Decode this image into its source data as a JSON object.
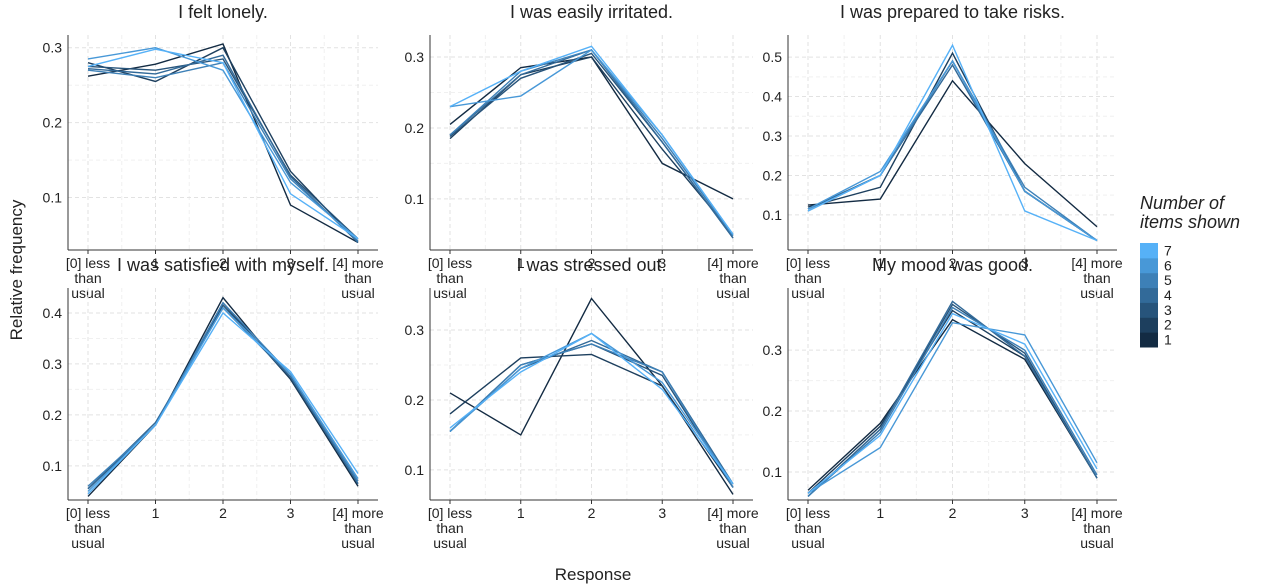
{
  "y_label": "Relative frequency",
  "x_label": "Response",
  "legend_title": "Number of items shown",
  "chart_data": [
    {
      "type": "line",
      "title": "I felt lonely.",
      "categories": [
        "[0] less than usual",
        "1",
        "2",
        "3",
        "[4] more than usual"
      ],
      "ylim": [
        0.03,
        0.317
      ],
      "yticks": [
        0.1,
        0.2,
        0.3
      ],
      "grid": true,
      "series": [
        {
          "name": "1",
          "color": "#132B43",
          "values": [
            0.262,
            0.278,
            0.305,
            0.09,
            0.04
          ]
        },
        {
          "name": "2",
          "color": "#1D3F5E",
          "values": [
            0.28,
            0.255,
            0.3,
            0.135,
            0.04
          ]
        },
        {
          "name": "3",
          "color": "#27547B",
          "values": [
            0.275,
            0.27,
            0.285,
            0.13,
            0.045
          ]
        },
        {
          "name": "4",
          "color": "#326A99",
          "values": [
            0.272,
            0.265,
            0.29,
            0.128,
            0.04
          ]
        },
        {
          "name": "5",
          "color": "#3D80B7",
          "values": [
            0.27,
            0.26,
            0.28,
            0.125,
            0.042
          ]
        },
        {
          "name": "6",
          "color": "#4898D7",
          "values": [
            0.285,
            0.3,
            0.27,
            0.12,
            0.045
          ]
        },
        {
          "name": "7",
          "color": "#56B1F7",
          "values": [
            0.275,
            0.298,
            0.28,
            0.105,
            0.045
          ]
        }
      ]
    },
    {
      "type": "line",
      "title": "I was easily irritated.",
      "categories": [
        "[0] less than usual",
        "1",
        "2",
        "3",
        "[4] more than usual"
      ],
      "ylim": [
        0.028,
        0.331
      ],
      "yticks": [
        0.1,
        0.2,
        0.3
      ],
      "grid": true,
      "series": [
        {
          "name": "1",
          "color": "#132B43",
          "values": [
            0.205,
            0.285,
            0.3,
            0.15,
            0.1
          ]
        },
        {
          "name": "2",
          "color": "#1D3F5E",
          "values": [
            0.185,
            0.275,
            0.3,
            0.17,
            0.05
          ]
        },
        {
          "name": "3",
          "color": "#27547B",
          "values": [
            0.188,
            0.27,
            0.305,
            0.18,
            0.045
          ]
        },
        {
          "name": "4",
          "color": "#326A99",
          "values": [
            0.19,
            0.275,
            0.31,
            0.18,
            0.045
          ]
        },
        {
          "name": "5",
          "color": "#3D80B7",
          "values": [
            0.19,
            0.28,
            0.31,
            0.185,
            0.048
          ]
        },
        {
          "name": "6",
          "color": "#4898D7",
          "values": [
            0.23,
            0.245,
            0.31,
            0.19,
            0.05
          ]
        },
        {
          "name": "7",
          "color": "#56B1F7",
          "values": [
            0.23,
            0.28,
            0.315,
            0.19,
            0.05
          ]
        }
      ]
    },
    {
      "type": "line",
      "title": "I was prepared to take risks.",
      "categories": [
        "[0] less than usual",
        "1",
        "2",
        "3",
        "[4] more than usual"
      ],
      "ylim": [
        0.011,
        0.556
      ],
      "yticks": [
        0.1,
        0.2,
        0.3,
        0.4,
        0.5
      ],
      "grid": true,
      "series": [
        {
          "name": "1",
          "color": "#132B43",
          "values": [
            0.125,
            0.14,
            0.44,
            0.23,
            0.07
          ]
        },
        {
          "name": "2",
          "color": "#1D3F5E",
          "values": [
            0.12,
            0.17,
            0.51,
            0.16,
            0.035
          ]
        },
        {
          "name": "3",
          "color": "#27547B",
          "values": [
            0.115,
            0.2,
            0.49,
            0.16,
            0.035
          ]
        },
        {
          "name": "4",
          "color": "#326A99",
          "values": [
            0.115,
            0.2,
            0.48,
            0.16,
            0.035
          ]
        },
        {
          "name": "5",
          "color": "#3D80B7",
          "values": [
            0.11,
            0.2,
            0.49,
            0.17,
            0.035
          ]
        },
        {
          "name": "6",
          "color": "#4898D7",
          "values": [
            0.115,
            0.21,
            0.49,
            0.16,
            0.035
          ]
        },
        {
          "name": "7",
          "color": "#56B1F7",
          "values": [
            0.11,
            0.2,
            0.53,
            0.11,
            0.035
          ]
        }
      ]
    },
    {
      "type": "line",
      "title": "I was satisfied with myself.",
      "categories": [
        "[0] less than usual",
        "1",
        "2",
        "3",
        "[4] more than usual"
      ],
      "ylim": [
        0.033,
        0.449
      ],
      "yticks": [
        0.1,
        0.2,
        0.3,
        0.4
      ],
      "grid": true,
      "series": [
        {
          "name": "1",
          "color": "#132B43",
          "values": [
            0.04,
            0.18,
            0.43,
            0.27,
            0.06
          ]
        },
        {
          "name": "2",
          "color": "#1D3F5E",
          "values": [
            0.055,
            0.18,
            0.42,
            0.27,
            0.065
          ]
        },
        {
          "name": "3",
          "color": "#27547B",
          "values": [
            0.055,
            0.18,
            0.415,
            0.275,
            0.065
          ]
        },
        {
          "name": "4",
          "color": "#326A99",
          "values": [
            0.055,
            0.185,
            0.41,
            0.275,
            0.065
          ]
        },
        {
          "name": "5",
          "color": "#3D80B7",
          "values": [
            0.06,
            0.18,
            0.42,
            0.28,
            0.07
          ]
        },
        {
          "name": "6",
          "color": "#4898D7",
          "values": [
            0.05,
            0.18,
            0.41,
            0.28,
            0.075
          ]
        },
        {
          "name": "7",
          "color": "#56B1F7",
          "values": [
            0.045,
            0.18,
            0.4,
            0.285,
            0.085
          ]
        }
      ]
    },
    {
      "type": "line",
      "title": "I was stressed out.",
      "categories": [
        "[0] less than usual",
        "1",
        "2",
        "3",
        "[4] more than usual"
      ],
      "ylim": [
        0.057,
        0.36
      ],
      "yticks": [
        0.1,
        0.2,
        0.3
      ],
      "grid": true,
      "series": [
        {
          "name": "1",
          "color": "#132B43",
          "values": [
            0.21,
            0.15,
            0.345,
            0.22,
            0.065
          ]
        },
        {
          "name": "2",
          "color": "#1D3F5E",
          "values": [
            0.18,
            0.26,
            0.265,
            0.22,
            0.075
          ]
        },
        {
          "name": "3",
          "color": "#27547B",
          "values": [
            0.155,
            0.25,
            0.28,
            0.235,
            0.075
          ]
        },
        {
          "name": "4",
          "color": "#326A99",
          "values": [
            0.155,
            0.245,
            0.285,
            0.24,
            0.08
          ]
        },
        {
          "name": "5",
          "color": "#3D80B7",
          "values": [
            0.155,
            0.25,
            0.28,
            0.24,
            0.075
          ]
        },
        {
          "name": "6",
          "color": "#4898D7",
          "values": [
            0.155,
            0.245,
            0.295,
            0.225,
            0.08
          ]
        },
        {
          "name": "7",
          "color": "#56B1F7",
          "values": [
            0.16,
            0.24,
            0.295,
            0.215,
            0.08
          ]
        }
      ]
    },
    {
      "type": "line",
      "title": "My mood was good.",
      "categories": [
        "[0] less than usual",
        "1",
        "2",
        "3",
        "[4] more than usual"
      ],
      "ylim": [
        0.054,
        0.402
      ],
      "yticks": [
        0.1,
        0.2,
        0.3
      ],
      "grid": true,
      "series": [
        {
          "name": "1",
          "color": "#132B43",
          "values": [
            0.07,
            0.18,
            0.35,
            0.285,
            0.09
          ]
        },
        {
          "name": "2",
          "color": "#1D3F5E",
          "values": [
            0.065,
            0.175,
            0.365,
            0.29,
            0.09
          ]
        },
        {
          "name": "3",
          "color": "#27547B",
          "values": [
            0.06,
            0.17,
            0.375,
            0.295,
            0.09
          ]
        },
        {
          "name": "4",
          "color": "#326A99",
          "values": [
            0.06,
            0.17,
            0.38,
            0.29,
            0.09
          ]
        },
        {
          "name": "5",
          "color": "#3D80B7",
          "values": [
            0.06,
            0.165,
            0.37,
            0.3,
            0.095
          ]
        },
        {
          "name": "6",
          "color": "#4898D7",
          "values": [
            0.065,
            0.14,
            0.345,
            0.325,
            0.115
          ]
        },
        {
          "name": "7",
          "color": "#56B1F7",
          "values": [
            0.065,
            0.16,
            0.36,
            0.31,
            0.105
          ]
        }
      ]
    }
  ]
}
